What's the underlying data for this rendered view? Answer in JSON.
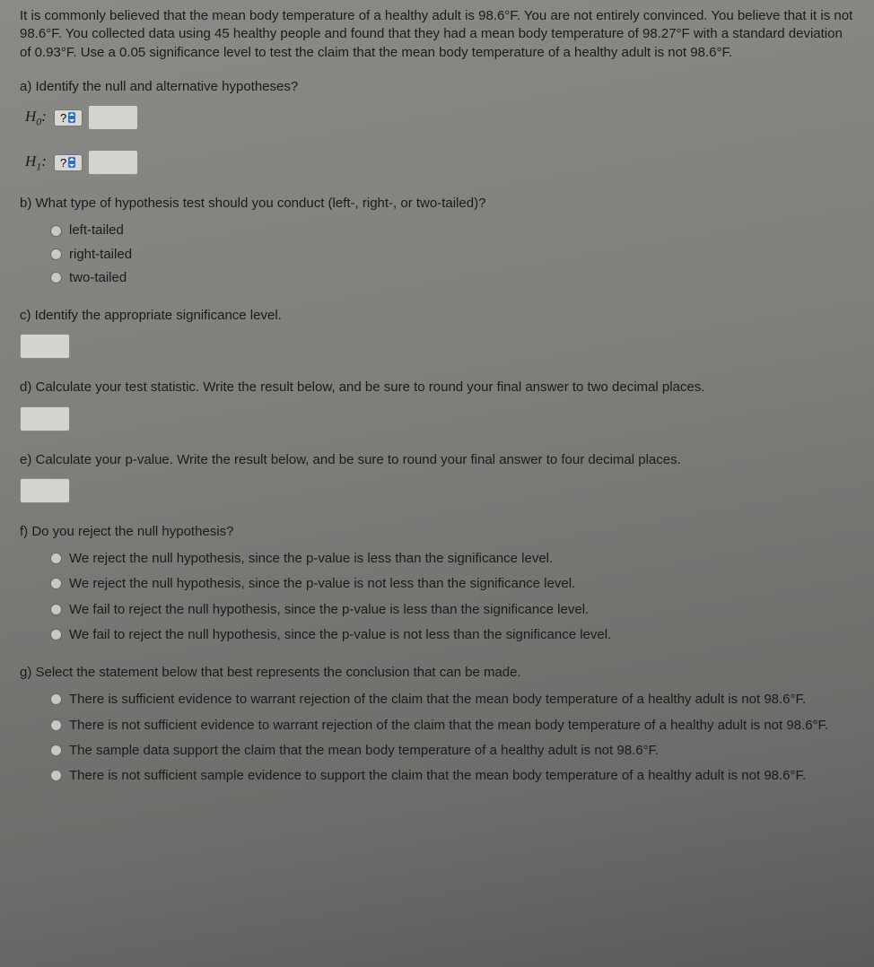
{
  "intro": "It is commonly believed that the mean body temperature of a healthy adult is 98.6°F. You are not entirely convinced. You believe that it is not 98.6°F. You collected data using 45 healthy people and found that they had a mean body temperature of 98.27°F with a standard deviation of 0.93°F. Use a 0.05 significance level to test the claim that the mean body temperature of a healthy adult is not 98.6°F.",
  "a": {
    "prompt": "a) Identify the null and alternative hypotheses?",
    "h0_symbol": "H₀:",
    "h1_symbol": "H₁:",
    "select_placeholder": "?",
    "input_value": ""
  },
  "b": {
    "prompt": "b) What type of hypothesis test should you conduct (left-, right-, or two-tailed)?",
    "options": [
      "left-tailed",
      "right-tailed",
      "two-tailed"
    ]
  },
  "c": {
    "prompt": "c) Identify the appropriate significance level.",
    "input_value": ""
  },
  "d": {
    "prompt": "d) Calculate your test statistic. Write the result below, and be sure to round your final answer to two decimal places.",
    "input_value": ""
  },
  "e": {
    "prompt": "e) Calculate your p-value. Write the result below, and be sure to round your final answer to four decimal places.",
    "input_value": ""
  },
  "f": {
    "prompt": "f) Do you reject the null hypothesis?",
    "options": [
      "We reject the null hypothesis, since the p-value is less than the significance level.",
      "We reject the null hypothesis, since the p-value is not less than the significance level.",
      "We fail to reject the null hypothesis, since the p-value is less than the significance level.",
      "We fail to reject the null hypothesis, since the p-value is not less than the significance level."
    ]
  },
  "g": {
    "prompt": "g) Select the statement below that best represents the conclusion that can be made.",
    "options": [
      "There is sufficient evidence to warrant rejection of the claim that the mean body temperature of a healthy adult is not 98.6°F.",
      "There is not sufficient evidence to warrant rejection of the claim that the mean body temperature of a healthy adult is not 98.6°F.",
      "The sample data support the claim that the mean body temperature of a healthy adult is not 98.6°F.",
      "There is not sufficient sample evidence to support the claim that the mean body temperature of a healthy adult is not 98.6°F."
    ]
  }
}
